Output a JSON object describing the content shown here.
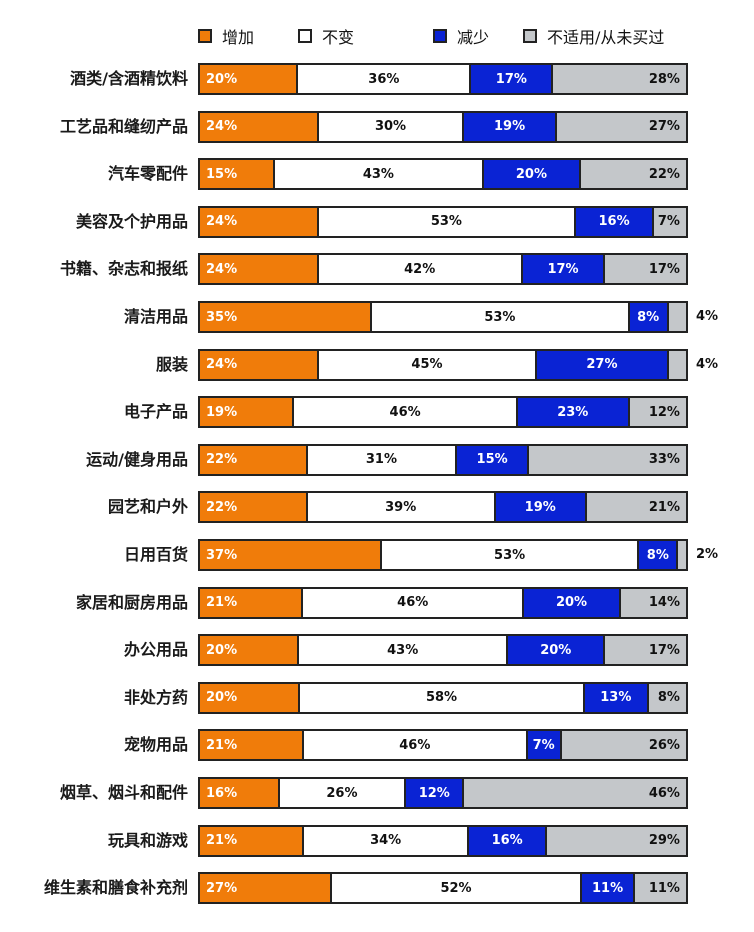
{
  "legend": [
    {
      "label": "增加",
      "color": "#f07c0a",
      "x": 0
    },
    {
      "label": "不变",
      "color": "#ffffff",
      "x": 100
    },
    {
      "label": "减少",
      "color": "#0a23d4",
      "x": 235
    },
    {
      "label": "不适用/从未买过",
      "color": "#c4c7ca",
      "x": 325
    }
  ],
  "chart_data": {
    "type": "bar",
    "orientation": "horizontal",
    "stacked": true,
    "normalized": true,
    "title": "",
    "xlabel": "",
    "ylabel": "",
    "grid": false,
    "legend_position": "top",
    "categories": [
      "酒类/含酒精饮料",
      "工艺品和缝纫产品",
      "汽车零配件",
      "美容及个护用品",
      "书籍、杂志和报纸",
      "清洁用品",
      "服装",
      "电子产品",
      "运动/健身用品",
      "园艺和户外",
      "日用百货",
      "家居和厨房用品",
      "办公用品",
      "非处方药",
      "宠物用品",
      "烟草、烟斗和配件",
      "玩具和游戏",
      "维生素和膳食补充剂"
    ],
    "series": [
      {
        "name": "增加",
        "color": "#f07c0a",
        "values": [
          20,
          24,
          15,
          24,
          24,
          35,
          24,
          19,
          22,
          22,
          37,
          21,
          20,
          20,
          21,
          16,
          21,
          27
        ]
      },
      {
        "name": "不变",
        "color": "#ffffff",
        "values": [
          36,
          30,
          43,
          53,
          42,
          53,
          45,
          46,
          31,
          39,
          53,
          46,
          43,
          58,
          46,
          26,
          34,
          52
        ]
      },
      {
        "name": "减少",
        "color": "#0a23d4",
        "values": [
          17,
          19,
          20,
          16,
          17,
          8,
          27,
          23,
          15,
          19,
          8,
          20,
          20,
          13,
          7,
          12,
          16,
          11
        ]
      },
      {
        "name": "不适用/从未买过",
        "color": "#c4c7ca",
        "values": [
          28,
          27,
          22,
          7,
          17,
          4,
          4,
          12,
          33,
          21,
          2,
          14,
          17,
          8,
          26,
          46,
          29,
          11
        ]
      }
    ],
    "value_format": "{v}%",
    "outside_labels": {
      "清洁用品": "4%",
      "服装": "4%",
      "日用百货": "2%"
    }
  }
}
